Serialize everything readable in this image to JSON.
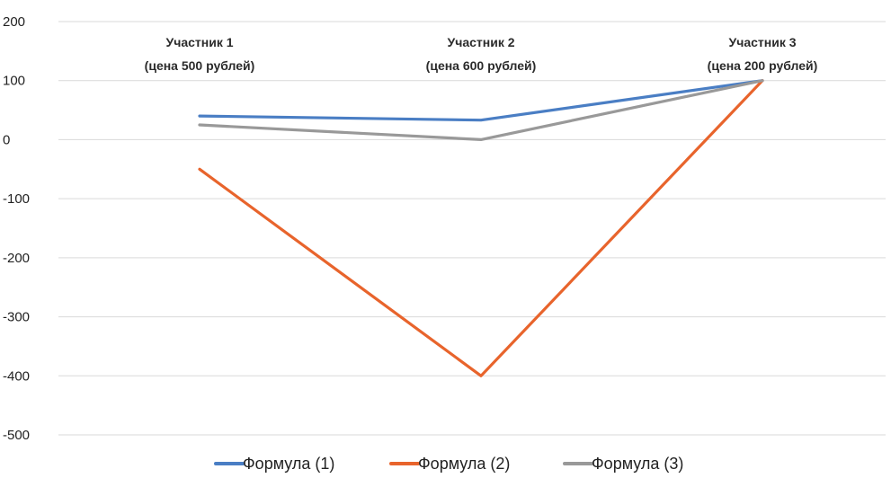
{
  "chart_data": {
    "type": "line",
    "title": "",
    "xlabel": "",
    "ylabel": "",
    "ylim": [
      -500,
      200
    ],
    "yticks": [
      "200",
      "100",
      "0",
      "-100",
      "-200",
      "-300",
      "-400",
      "-500"
    ],
    "grid": true,
    "legend_position": "bottom",
    "categories": [
      {
        "line1": "Участник 1",
        "line2": "(цена 500 рублей)"
      },
      {
        "line1": "Участник 2",
        "line2": "(цена 600 рублей)"
      },
      {
        "line1": "Участник 3",
        "line2": "(цена 200 рублей)"
      }
    ],
    "series": [
      {
        "name": "Формула (1)",
        "color": "#4a7ec4",
        "values": [
          40,
          33,
          100
        ]
      },
      {
        "name": "Формула (2)",
        "color": "#e8642c",
        "values": [
          -50,
          -400,
          100
        ]
      },
      {
        "name": "Формула (3)",
        "color": "#999999",
        "values": [
          25,
          0,
          100
        ]
      }
    ]
  }
}
